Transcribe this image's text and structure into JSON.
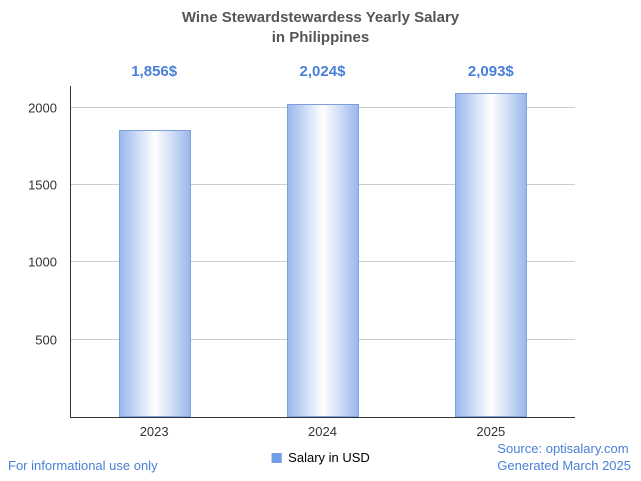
{
  "chart_data": {
    "type": "bar",
    "title_line1": "Wine Stewardstewardess Yearly Salary",
    "title_line2": "in Philippines",
    "categories": [
      "2023",
      "2024",
      "2025"
    ],
    "values": [
      1856,
      2024,
      2093
    ],
    "value_labels": [
      "1,856$",
      "2,024$",
      "2,093$"
    ],
    "legend": "Salary in USD",
    "xlabel": "",
    "ylabel": "",
    "ylim": [
      0,
      2140
    ],
    "yticks": [
      500,
      1000,
      1500,
      2000
    ],
    "grid": true,
    "legend_position": "bottom"
  },
  "footer": {
    "left": "For informational use only",
    "source": "Source: optisalary.com",
    "generated": "Generated March 2025"
  },
  "colors": {
    "accent": "#4a80d8",
    "title": "#555555",
    "axis": "#333333",
    "grid": "#cccccc",
    "bar-edge": "#9bb8ed",
    "bar-border": "#7e9ede",
    "legend-swatch": "#6d9eeb"
  }
}
